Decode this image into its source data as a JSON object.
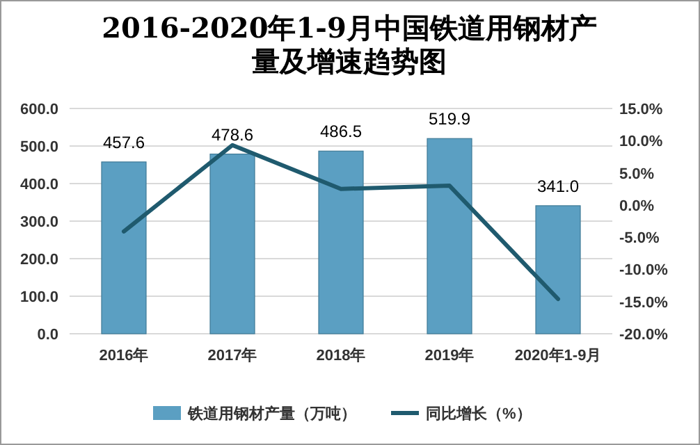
{
  "chart_data": {
    "type": "bar",
    "title": "2016-2020年1-9月中国铁道用钢材产量及增速趋势图",
    "categories": [
      "2016年",
      "2017年",
      "2018年",
      "2019年",
      "2020年1-9月"
    ],
    "series": [
      {
        "name": "铁道用钢材产量（万吨）",
        "color": "#5b9fc2",
        "values": [
          457.6,
          478.6,
          486.5,
          519.9,
          341.0
        ],
        "value_labels": [
          "457.6",
          "478.6",
          "486.5",
          "519.9",
          "341.0"
        ]
      },
      {
        "name": "同比增长（%）",
        "type": "line",
        "axis": "y2",
        "color": "#1f5a6e",
        "values": [
          -4.1,
          9.3,
          2.5,
          3.0,
          -14.6
        ]
      }
    ],
    "ylim": [
      0,
      600
    ],
    "yticks": [
      {
        "value": 0,
        "label": "0.0"
      },
      {
        "value": 100,
        "label": "100.0"
      },
      {
        "value": 200,
        "label": "200.0"
      },
      {
        "value": 300,
        "label": "300.0"
      },
      {
        "value": 400,
        "label": "400.0"
      },
      {
        "value": 500,
        "label": "500.0"
      },
      {
        "value": 600,
        "label": "600.0"
      }
    ],
    "y2lim": [
      -20,
      15
    ],
    "y2ticks": [
      {
        "value": -20,
        "label": "-20.0%"
      },
      {
        "value": -15,
        "label": "-15.0%"
      },
      {
        "value": -10,
        "label": "-10.0%"
      },
      {
        "value": -5,
        "label": "-5.0%"
      },
      {
        "value": 0,
        "label": "0.0%"
      },
      {
        "value": 5,
        "label": "5.0%"
      },
      {
        "value": 10,
        "label": "10.0%"
      },
      {
        "value": 15,
        "label": "15.0%"
      }
    ],
    "grid": "y",
    "legend": "bottom"
  }
}
